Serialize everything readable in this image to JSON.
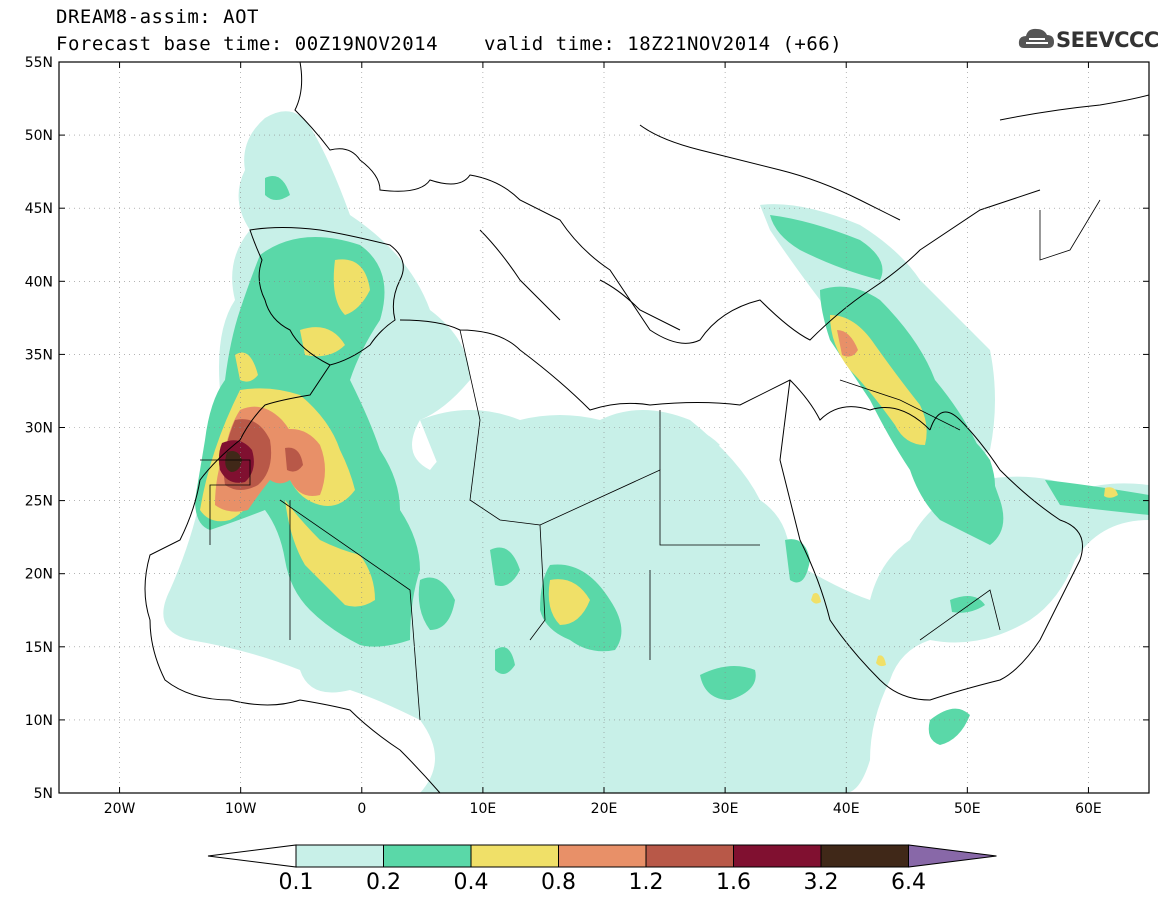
{
  "header": {
    "title": "DREAM8-assim: AOT",
    "base_time": "Forecast base time: 00Z19NOV2014",
    "valid_time": "valid time: 18Z21NOV2014 (+66)",
    "logo_text": "SEEVCCC"
  },
  "map": {
    "lon_range": [
      -25,
      65
    ],
    "lat_range": [
      5,
      55
    ],
    "lat_ticks": [
      {
        "value": 55,
        "label": "55N"
      },
      {
        "value": 50,
        "label": "50N"
      },
      {
        "value": 45,
        "label": "45N"
      },
      {
        "value": 40,
        "label": "40N"
      },
      {
        "value": 35,
        "label": "35N"
      },
      {
        "value": 30,
        "label": "30N"
      },
      {
        "value": 25,
        "label": "25N"
      },
      {
        "value": 20,
        "label": "20N"
      },
      {
        "value": 15,
        "label": "15N"
      },
      {
        "value": 10,
        "label": "10N"
      },
      {
        "value": 5,
        "label": "5N"
      }
    ],
    "lon_ticks": [
      {
        "value": -20,
        "label": "20W"
      },
      {
        "value": -10,
        "label": "10W"
      },
      {
        "value": 0,
        "label": "0"
      },
      {
        "value": 10,
        "label": "10E"
      },
      {
        "value": 20,
        "label": "20E"
      },
      {
        "value": 30,
        "label": "30E"
      },
      {
        "value": 40,
        "label": "40E"
      },
      {
        "value": 50,
        "label": "50E"
      },
      {
        "value": 60,
        "label": "60E"
      }
    ]
  },
  "colorbar": {
    "labels": [
      "0.1",
      "0.2",
      "0.4",
      "0.8",
      "1.2",
      "1.6",
      "3.2",
      "6.4"
    ],
    "colors": [
      "#c8f0e8",
      "#5ad8a8",
      "#f0e068",
      "#e89068",
      "#b85848",
      "#801030",
      "#402818",
      "#8868a8"
    ]
  }
}
